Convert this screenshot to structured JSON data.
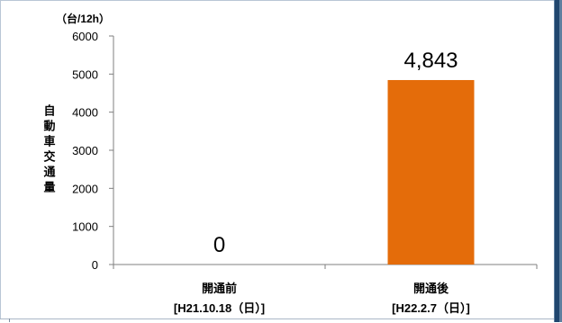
{
  "chart_data": {
    "type": "bar",
    "unit_label": "（台/12h）",
    "ylabel": "自動車交通量",
    "ylim": [
      0,
      6000
    ],
    "yticks": [
      0,
      1000,
      2000,
      3000,
      4000,
      5000,
      6000
    ],
    "categories": [
      {
        "line1": "開通前",
        "line2": "[H21.10.18（日）]"
      },
      {
        "line1": "開通後",
        "line2": "[H22.2.7（日）]"
      }
    ],
    "values": [
      0,
      4843
    ],
    "data_labels": [
      "0",
      "4,843"
    ],
    "bar_color": "#e46c0a",
    "grid": false
  }
}
